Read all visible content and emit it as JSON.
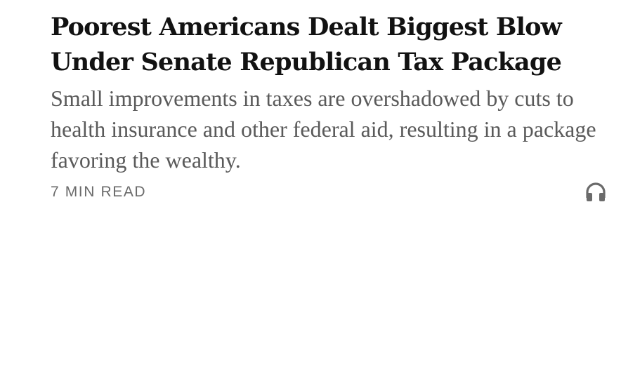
{
  "article": {
    "headline": "Poorest Americans Dealt Biggest Blow Under Senate Republican Tax Package",
    "summary": "Small improvements in taxes are overshadowed by cuts to health insurance and other federal aid, resulting in a package favoring the wealthy.",
    "read_time": "7 MIN READ",
    "listen_icon": "headphones-icon"
  }
}
